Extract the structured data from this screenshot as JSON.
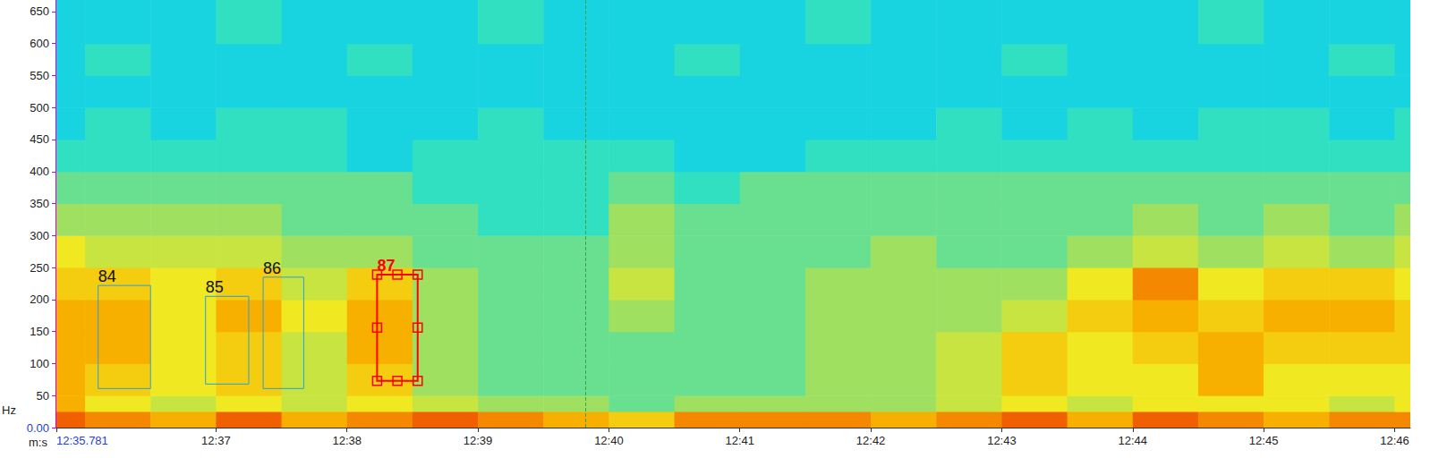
{
  "chart_data": {
    "type": "spectrogram",
    "x_label": "m:s",
    "y_label": "Hz",
    "xlim": [
      755.781,
      766.12
    ],
    "xticks": [
      {
        "value": 755.781,
        "label": "12:35.781"
      },
      {
        "value": 757,
        "label": "12:37"
      },
      {
        "value": 758,
        "label": "12:38"
      },
      {
        "value": 759,
        "label": "12:39"
      },
      {
        "value": 760,
        "label": "12:40"
      },
      {
        "value": 761,
        "label": "12:41"
      },
      {
        "value": 762,
        "label": "12:42"
      },
      {
        "value": 763,
        "label": "12:43"
      },
      {
        "value": 764,
        "label": "12:44"
      },
      {
        "value": 765,
        "label": "12:45"
      },
      {
        "value": 766,
        "label": "12:46"
      }
    ],
    "ylim": [
      0,
      668
    ],
    "yticks": [
      {
        "value": 0,
        "label": "0.00"
      },
      50,
      100,
      150,
      200,
      250,
      300,
      350,
      400,
      450,
      500,
      550,
      600,
      650
    ],
    "grid": false,
    "x_bins": [
      755.5,
      756,
      756.5,
      757,
      757.5,
      758,
      758.5,
      759,
      759.5,
      760,
      760.5,
      761,
      761.5,
      762,
      762.5,
      763,
      763.5,
      764,
      764.5,
      765,
      765.5,
      766,
      766.5
    ],
    "y_bins": [
      0,
      25,
      50,
      100,
      150,
      200,
      250,
      300,
      350,
      400,
      450,
      500,
      550,
      600,
      668
    ],
    "cells": [
      [
        8,
        7.5,
        7,
        8,
        7,
        7.5,
        8,
        7.5,
        7,
        6.5,
        7.5,
        7.5,
        7.5,
        7,
        7.5,
        8,
        7,
        8,
        7.5,
        7,
        7.5,
        7.5
      ],
      [
        7,
        6,
        5.5,
        6,
        5.5,
        6,
        5.5,
        5,
        5,
        4.5,
        5,
        5,
        5,
        5,
        5.5,
        6,
        5.5,
        6,
        6,
        6,
        5.5,
        6
      ],
      [
        7,
        6.5,
        6,
        6.5,
        5.5,
        6.5,
        5,
        4.5,
        4.5,
        4.5,
        4.5,
        4.5,
        5,
        5,
        5.5,
        6.5,
        6,
        6,
        7,
        6,
        6,
        6
      ],
      [
        7,
        7,
        6,
        6.5,
        5.5,
        7,
        5,
        4.5,
        4.5,
        4.5,
        4.5,
        4.5,
        5,
        5,
        5.5,
        6.5,
        6,
        6.5,
        7,
        6.5,
        6.5,
        6.5
      ],
      [
        7,
        7,
        6,
        7,
        6,
        7,
        5,
        4.5,
        4.5,
        5,
        4.5,
        4.5,
        5,
        5,
        5,
        5.5,
        6.5,
        7,
        6.5,
        7,
        7,
        6.5
      ],
      [
        6.5,
        6.5,
        6,
        6.5,
        5.5,
        6.5,
        5,
        4.5,
        4.5,
        5.5,
        4.5,
        4.5,
        5,
        5,
        5,
        5,
        6,
        7.5,
        6,
        6.5,
        6.5,
        6
      ],
      [
        6,
        5.5,
        5.5,
        5.5,
        5,
        5,
        4.5,
        4.5,
        4.5,
        5,
        4.5,
        4.5,
        4.5,
        5,
        4.5,
        4.5,
        5,
        5.5,
        5,
        5.5,
        5,
        5.5
      ],
      [
        5,
        5,
        5,
        5,
        4.5,
        4.5,
        4.5,
        4,
        4,
        5,
        4.5,
        4.5,
        4.5,
        4.5,
        4.5,
        4.5,
        4.5,
        5,
        4.5,
        5,
        4.5,
        5
      ],
      [
        4.5,
        4.5,
        4.5,
        4.5,
        4.5,
        4.5,
        4,
        4,
        4,
        4.5,
        4,
        4.5,
        4.5,
        4.5,
        4.5,
        4.5,
        4.5,
        4.5,
        4.5,
        4.5,
        4.5,
        4.5
      ],
      [
        4,
        4,
        4,
        4,
        4,
        3.5,
        4,
        4,
        4,
        4,
        3.5,
        3.5,
        4,
        4,
        4,
        4,
        4,
        4,
        4,
        4,
        4,
        4
      ],
      [
        3.5,
        4,
        3.5,
        4,
        4,
        3.5,
        3.5,
        4,
        3.5,
        3.5,
        3.5,
        3.5,
        3.5,
        3.5,
        4,
        3.5,
        4,
        3.5,
        4,
        4,
        3.5,
        4
      ],
      [
        3.5,
        3.5,
        3.5,
        3.5,
        3.5,
        3.5,
        3.5,
        3.5,
        3.5,
        3.5,
        3.5,
        3.5,
        3.5,
        3.5,
        3.5,
        3.5,
        3.5,
        3.5,
        3.5,
        3.5,
        3.5,
        3.5
      ],
      [
        3.5,
        4,
        3.5,
        3.5,
        3.5,
        4,
        3.5,
        3.5,
        3.5,
        3.5,
        4,
        3.5,
        3.5,
        3.5,
        3.5,
        4,
        3.5,
        3.5,
        3.5,
        3.5,
        4,
        3.5
      ],
      [
        3.5,
        3.5,
        3.5,
        4,
        3.5,
        3.5,
        3.5,
        4,
        3.5,
        3.5,
        3.5,
        3.5,
        4,
        3.5,
        3.5,
        3.5,
        3.5,
        3.5,
        4,
        3.5,
        3.5,
        3.5
      ]
    ],
    "color_range": [
      2,
      9
    ],
    "annotations": [
      {
        "label": "84",
        "x": [
          756.1,
          756.5
        ],
        "y": [
          61,
          222
        ],
        "color": "#2a9fd6"
      },
      {
        "label": "85",
        "x": [
          756.92,
          757.25
        ],
        "y": [
          68,
          205
        ],
        "color": "#2a9fd6"
      },
      {
        "label": "86",
        "x": [
          757.36,
          757.67
        ],
        "y": [
          61,
          235
        ],
        "color": "#2a9fd6"
      },
      {
        "label": "87",
        "x": [
          758.23,
          758.54
        ],
        "y": [
          73,
          239
        ],
        "color": "#ff0000",
        "marker": "square"
      }
    ],
    "cursor": {
      "x": 759.82,
      "color": "#3aa34a",
      "line_style": "dashed"
    }
  }
}
